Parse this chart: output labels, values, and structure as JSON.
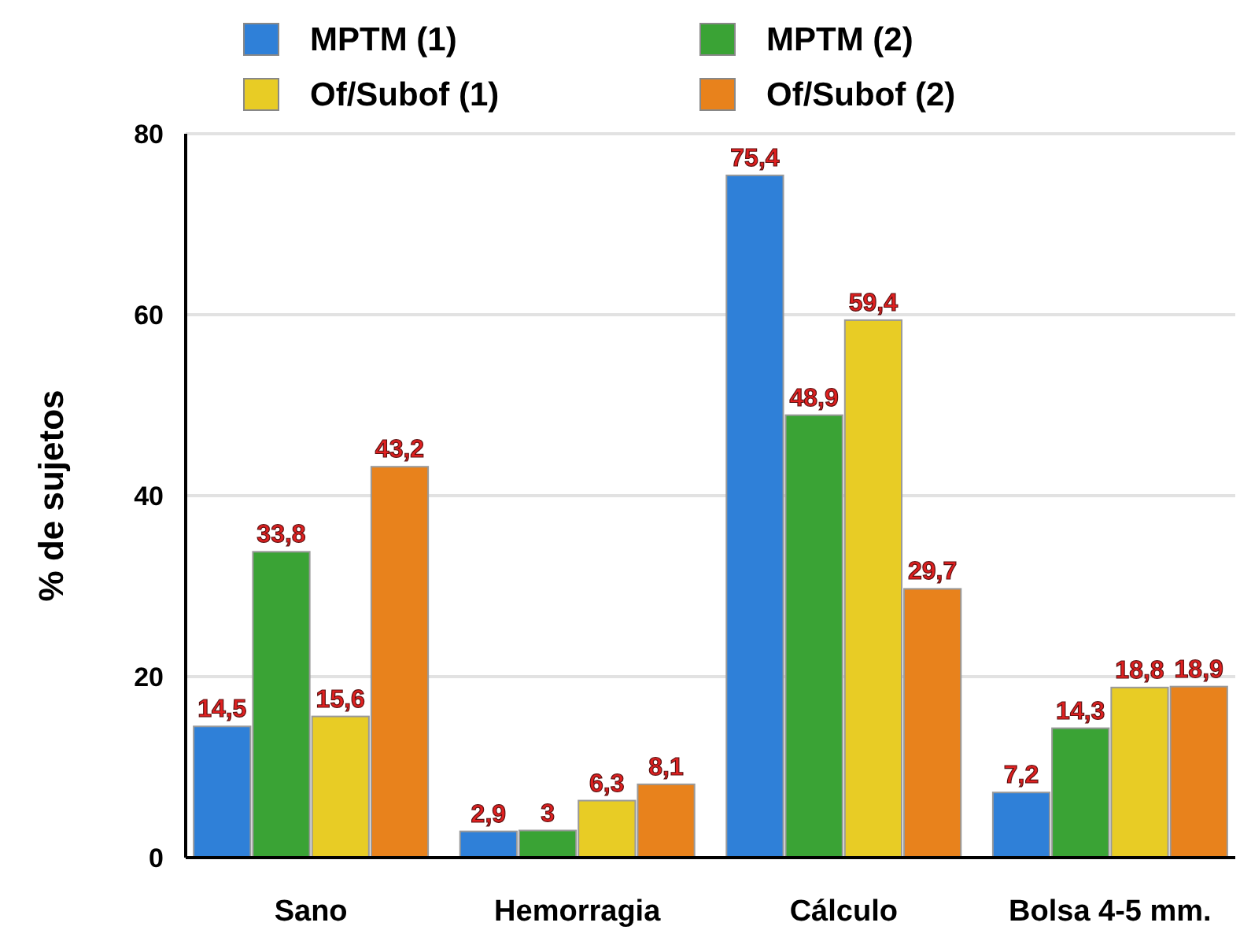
{
  "chart_data": {
    "type": "bar",
    "ylabel": "% de sujetos",
    "categories": [
      "Sano",
      "Hemorragia",
      "Cálculo",
      "Bolsa 4-5 mm."
    ],
    "series": [
      {
        "name": "MPTM (1)",
        "color": "#2f80d8",
        "values": [
          14.5,
          2.9,
          75.4,
          7.2
        ],
        "value_labels": [
          "14,5",
          "2,9",
          "75,4",
          "7,2"
        ]
      },
      {
        "name": "MPTM (2)",
        "color": "#3aa335",
        "values": [
          33.8,
          3,
          48.9,
          14.3
        ],
        "value_labels": [
          "33,8",
          "3",
          "48,9",
          "14,3"
        ]
      },
      {
        "name": "Of/Subof (1)",
        "color": "#e8cc25",
        "values": [
          15.6,
          6.3,
          59.4,
          18.8
        ],
        "value_labels": [
          "15,6",
          "6,3",
          "59,4",
          "18,8"
        ]
      },
      {
        "name": "Of/Subof (2)",
        "color": "#e8821c",
        "values": [
          43.2,
          8.1,
          29.7,
          18.9
        ],
        "value_labels": [
          "43,2",
          "8,1",
          "29,7",
          "18,9"
        ]
      }
    ],
    "ylim": [
      0,
      80
    ],
    "yticks": [
      0,
      20,
      40,
      60,
      80
    ],
    "grid": "y",
    "legend": "top"
  }
}
